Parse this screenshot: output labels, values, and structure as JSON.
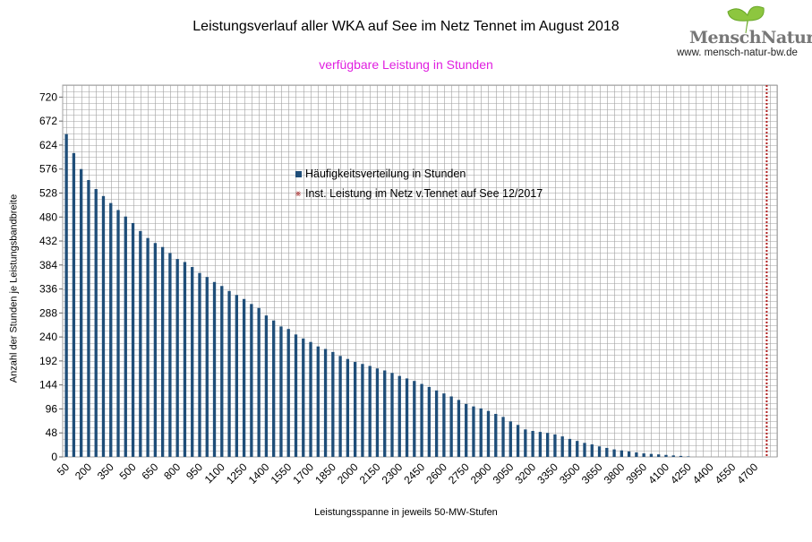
{
  "title": "Leistungsverlauf aller WKA auf See im Netz Tennet im August 2018",
  "subtitle": "verfügbare Leistung in Stunden",
  "logo": {
    "name": "MenschNatur",
    "url": "www. mensch-natur-bw.de"
  },
  "colors": {
    "bar": "#1f4e79",
    "subtitle": "#e020e0",
    "grid": "#a0a0a0",
    "limit_line": "#b22222"
  },
  "chart_data": {
    "type": "bar",
    "title": "Leistungsverlauf aller WKA auf See im Netz Tennet im August 2018",
    "subtitle": "verfügbare Leistung in Stunden",
    "xlabel": "Leistungsspanne in jeweils 50-MW-Stufen",
    "ylabel": "Anzahl der Stunden je Leistungsbandbreite",
    "ylim": [
      0,
      744
    ],
    "yticks": [
      0,
      48,
      96,
      144,
      192,
      240,
      288,
      336,
      384,
      432,
      480,
      528,
      576,
      624,
      672,
      720
    ],
    "xticks": [
      "50",
      "200",
      "350",
      "500",
      "650",
      "800",
      "950",
      "1100",
      "1250",
      "1400",
      "1550",
      "1700",
      "1850",
      "2000",
      "2150",
      "2300",
      "2450",
      "2600",
      "2750",
      "2900",
      "3050",
      "3200",
      "3350",
      "3500",
      "3650",
      "3800",
      "3950",
      "4100",
      "4250",
      "4400",
      "4550",
      "4700"
    ],
    "grid": true,
    "legend_position": "center",
    "categories": [
      50,
      100,
      150,
      200,
      250,
      300,
      350,
      400,
      450,
      500,
      550,
      600,
      650,
      700,
      750,
      800,
      850,
      900,
      950,
      1000,
      1050,
      1100,
      1150,
      1200,
      1250,
      1300,
      1350,
      1400,
      1450,
      1500,
      1550,
      1600,
      1650,
      1700,
      1750,
      1800,
      1850,
      1900,
      1950,
      2000,
      2050,
      2100,
      2150,
      2200,
      2250,
      2300,
      2350,
      2400,
      2450,
      2500,
      2550,
      2600,
      2650,
      2700,
      2750,
      2800,
      2850,
      2900,
      2950,
      3000,
      3050,
      3100,
      3150,
      3200,
      3250,
      3300,
      3350,
      3400,
      3450,
      3500,
      3550,
      3600,
      3650,
      3700,
      3750,
      3800,
      3850,
      3900,
      3950,
      4000,
      4050,
      4100,
      4150,
      4200,
      4250,
      4300,
      4350,
      4400,
      4450,
      4500,
      4550,
      4600,
      4650,
      4700
    ],
    "series": [
      {
        "name": "Häufigkeitsverteilung in Stunden",
        "values": [
          646,
          608,
          576,
          554,
          536,
          522,
          508,
          494,
          481,
          468,
          452,
          438,
          428,
          420,
          408,
          396,
          390,
          380,
          368,
          360,
          350,
          342,
          332,
          324,
          316,
          306,
          298,
          283,
          273,
          261,
          256,
          245,
          237,
          230,
          221,
          216,
          210,
          202,
          196,
          190,
          186,
          182,
          177,
          173,
          168,
          162,
          157,
          152,
          146,
          140,
          133,
          127,
          121,
          114,
          106,
          101,
          97,
          92,
          86,
          80,
          71,
          64,
          55,
          52,
          50,
          48,
          45,
          41,
          36,
          32,
          28,
          25,
          21,
          18,
          15,
          13,
          11,
          9,
          7,
          6,
          5,
          4,
          3,
          2,
          1,
          0,
          0,
          0,
          0,
          0,
          0,
          0,
          0,
          0
        ]
      },
      {
        "name": "Inst. Leistung im Netz v.Tennet auf See 12/2017",
        "x": 4780
      }
    ]
  }
}
